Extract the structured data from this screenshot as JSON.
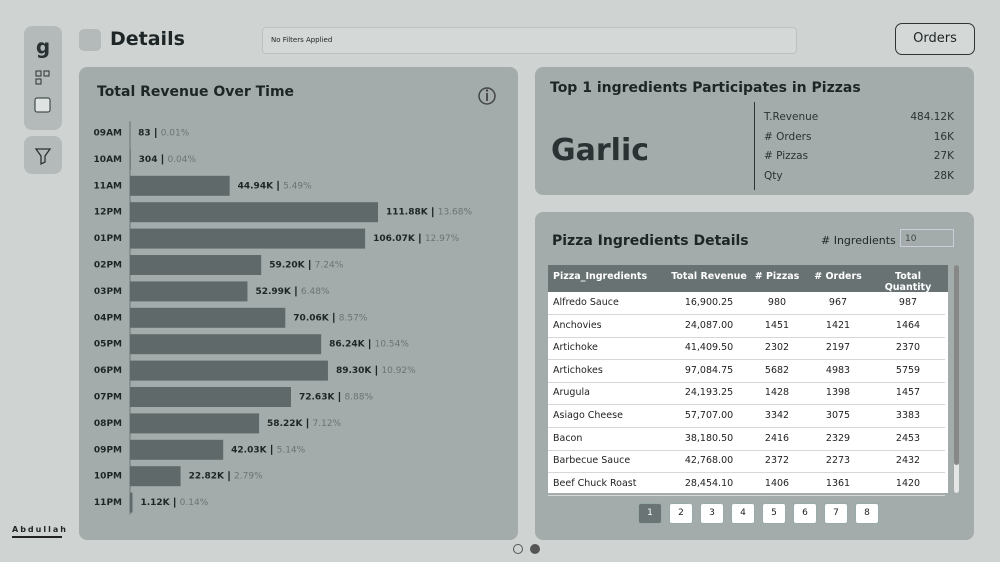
{
  "header": {
    "title": "Details",
    "filter": "No Filters Applied",
    "button": "Orders"
  },
  "logo": "Abdullah",
  "chart_data": {
    "type": "bar",
    "title": "Total Revenue Over Time",
    "categories": [
      "09AM",
      "10AM",
      "11AM",
      "12PM",
      "01PM",
      "02PM",
      "03PM",
      "04PM",
      "05PM",
      "06PM",
      "07PM",
      "08PM",
      "09PM",
      "10PM",
      "11PM"
    ],
    "values": [
      83,
      304,
      44940,
      111880,
      106070,
      59200,
      52990,
      70060,
      86240,
      89300,
      72630,
      58220,
      42030,
      22820,
      1120
    ],
    "value_labels": [
      "83",
      "304",
      "44.94K",
      "111.88K",
      "106.07K",
      "59.20K",
      "52.99K",
      "70.06K",
      "86.24K",
      "89.30K",
      "72.63K",
      "58.22K",
      "42.03K",
      "22.82K",
      "1.12K"
    ],
    "percent_labels": [
      "0.01%",
      "0.04%",
      "5.49%",
      "13.68%",
      "12.97%",
      "7.24%",
      "6.48%",
      "8.57%",
      "10.54%",
      "10.92%",
      "8.88%",
      "7.12%",
      "5.14%",
      "2.79%",
      "0.14%"
    ],
    "color": "#5f696a"
  },
  "kpi": {
    "title": "Top 1 ingredients Participates in Pizzas",
    "name": "Garlic",
    "stats": [
      {
        "label": "T.Revenue",
        "value": "484.12K"
      },
      {
        "label": "# Orders",
        "value": "16K"
      },
      {
        "label": "# Pizzas",
        "value": "27K"
      },
      {
        "label": "Qty",
        "value": "28K"
      }
    ]
  },
  "table": {
    "title": "Pizza Ingredients Details",
    "filter_label": "# Ingredients",
    "filter_value": "10",
    "columns": [
      "Pizza_Ingredients",
      "Total Revenue",
      "# Pizzas",
      "# Orders",
      "Total Quantity"
    ],
    "rows": [
      [
        "Alfredo Sauce",
        "16,900.25",
        "980",
        "967",
        "987"
      ],
      [
        "Anchovies",
        "24,087.00",
        "1451",
        "1421",
        "1464"
      ],
      [
        "Artichoke",
        "41,409.50",
        "2302",
        "2197",
        "2370"
      ],
      [
        "Artichokes",
        "97,084.75",
        "5682",
        "4983",
        "5759"
      ],
      [
        "Arugula",
        "24,193.25",
        "1428",
        "1398",
        "1457"
      ],
      [
        "Asiago Cheese",
        "57,707.00",
        "3342",
        "3075",
        "3383"
      ],
      [
        "Bacon",
        "38,180.50",
        "2416",
        "2329",
        "2453"
      ],
      [
        "Barbecue Sauce",
        "42,768.00",
        "2372",
        "2273",
        "2432"
      ],
      [
        "Beef Chuck Roast",
        "28,454.10",
        "1406",
        "1361",
        "1420"
      ]
    ]
  },
  "pagination": [
    "1",
    "2",
    "3",
    "4",
    "5",
    "6",
    "7",
    "8"
  ]
}
